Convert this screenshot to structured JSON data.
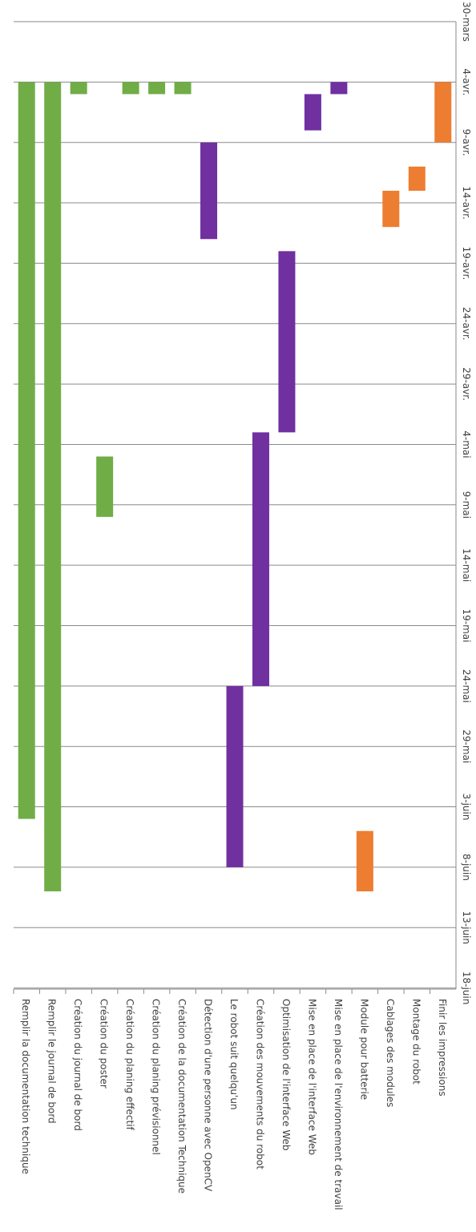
{
  "chart_data": {
    "type": "bar",
    "orientation": "gantt",
    "start_date": "2024-03-30",
    "ticks": [
      "30-mars",
      "4-avr.",
      "9-avr.",
      "14-avr.",
      "19-avr.",
      "24-avr.",
      "29-avr.",
      "4-mai",
      "9-mai",
      "14-mai",
      "19-mai",
      "24-mai",
      "29-mai",
      "3-juin",
      "8-juin",
      "13-juin",
      "18-juin"
    ],
    "colors": {
      "green": "#70ad47",
      "purple": "#7030a0",
      "orange": "#ed7d31"
    },
    "tasks": [
      {
        "label": "Remplir la documentation technique",
        "color": "green",
        "start": "2024-04-04",
        "end": "2024-06-04"
      },
      {
        "label": "Remplir le journal de bord",
        "color": "green",
        "start": "2024-04-04",
        "end": "2024-06-10"
      },
      {
        "label": "Création du journal de bord",
        "color": "green",
        "start": "2024-04-04",
        "end": "2024-04-05"
      },
      {
        "label": "Création du poster",
        "color": "green",
        "start": "2024-05-05",
        "end": "2024-05-10"
      },
      {
        "label": "Création du planing effectif",
        "color": "green",
        "start": "2024-04-04",
        "end": "2024-04-05"
      },
      {
        "label": "Création du planing prévisionnel",
        "color": "green",
        "start": "2024-04-04",
        "end": "2024-04-05"
      },
      {
        "label": "Création de la documentation Technique",
        "color": "green",
        "start": "2024-04-04",
        "end": "2024-04-05"
      },
      {
        "label": "Détection d'une personne avec OpenCV",
        "color": "purple",
        "start": "2024-04-09",
        "end": "2024-04-17"
      },
      {
        "label": "Le robot suit quelqu'un",
        "color": "purple",
        "start": "2024-05-24",
        "end": "2024-06-08"
      },
      {
        "label": "Création des mouvements du robot",
        "color": "purple",
        "start": "2024-05-03",
        "end": "2024-05-24"
      },
      {
        "label": "Optimisation de l'interface Web",
        "color": "purple",
        "start": "2024-04-18",
        "end": "2024-05-03"
      },
      {
        "label": "Mise en place de l'interface Web",
        "color": "purple",
        "start": "2024-04-05",
        "end": "2024-04-08"
      },
      {
        "label": "Mise en place de l'environnement de travail",
        "color": "purple",
        "start": "2024-04-04",
        "end": "2024-04-05"
      },
      {
        "label": "Module pour batterie",
        "color": "orange",
        "start": "2024-06-05",
        "end": "2024-06-10"
      },
      {
        "label": "Cablages des modules",
        "color": "orange",
        "start": "2024-04-13",
        "end": "2024-04-16"
      },
      {
        "label": "Montage du robot",
        "color": "orange",
        "start": "2024-04-11",
        "end": "2024-04-13"
      },
      {
        "label": "Finir les impressions",
        "color": "orange",
        "start": "2024-04-04",
        "end": "2024-04-09"
      }
    ]
  }
}
